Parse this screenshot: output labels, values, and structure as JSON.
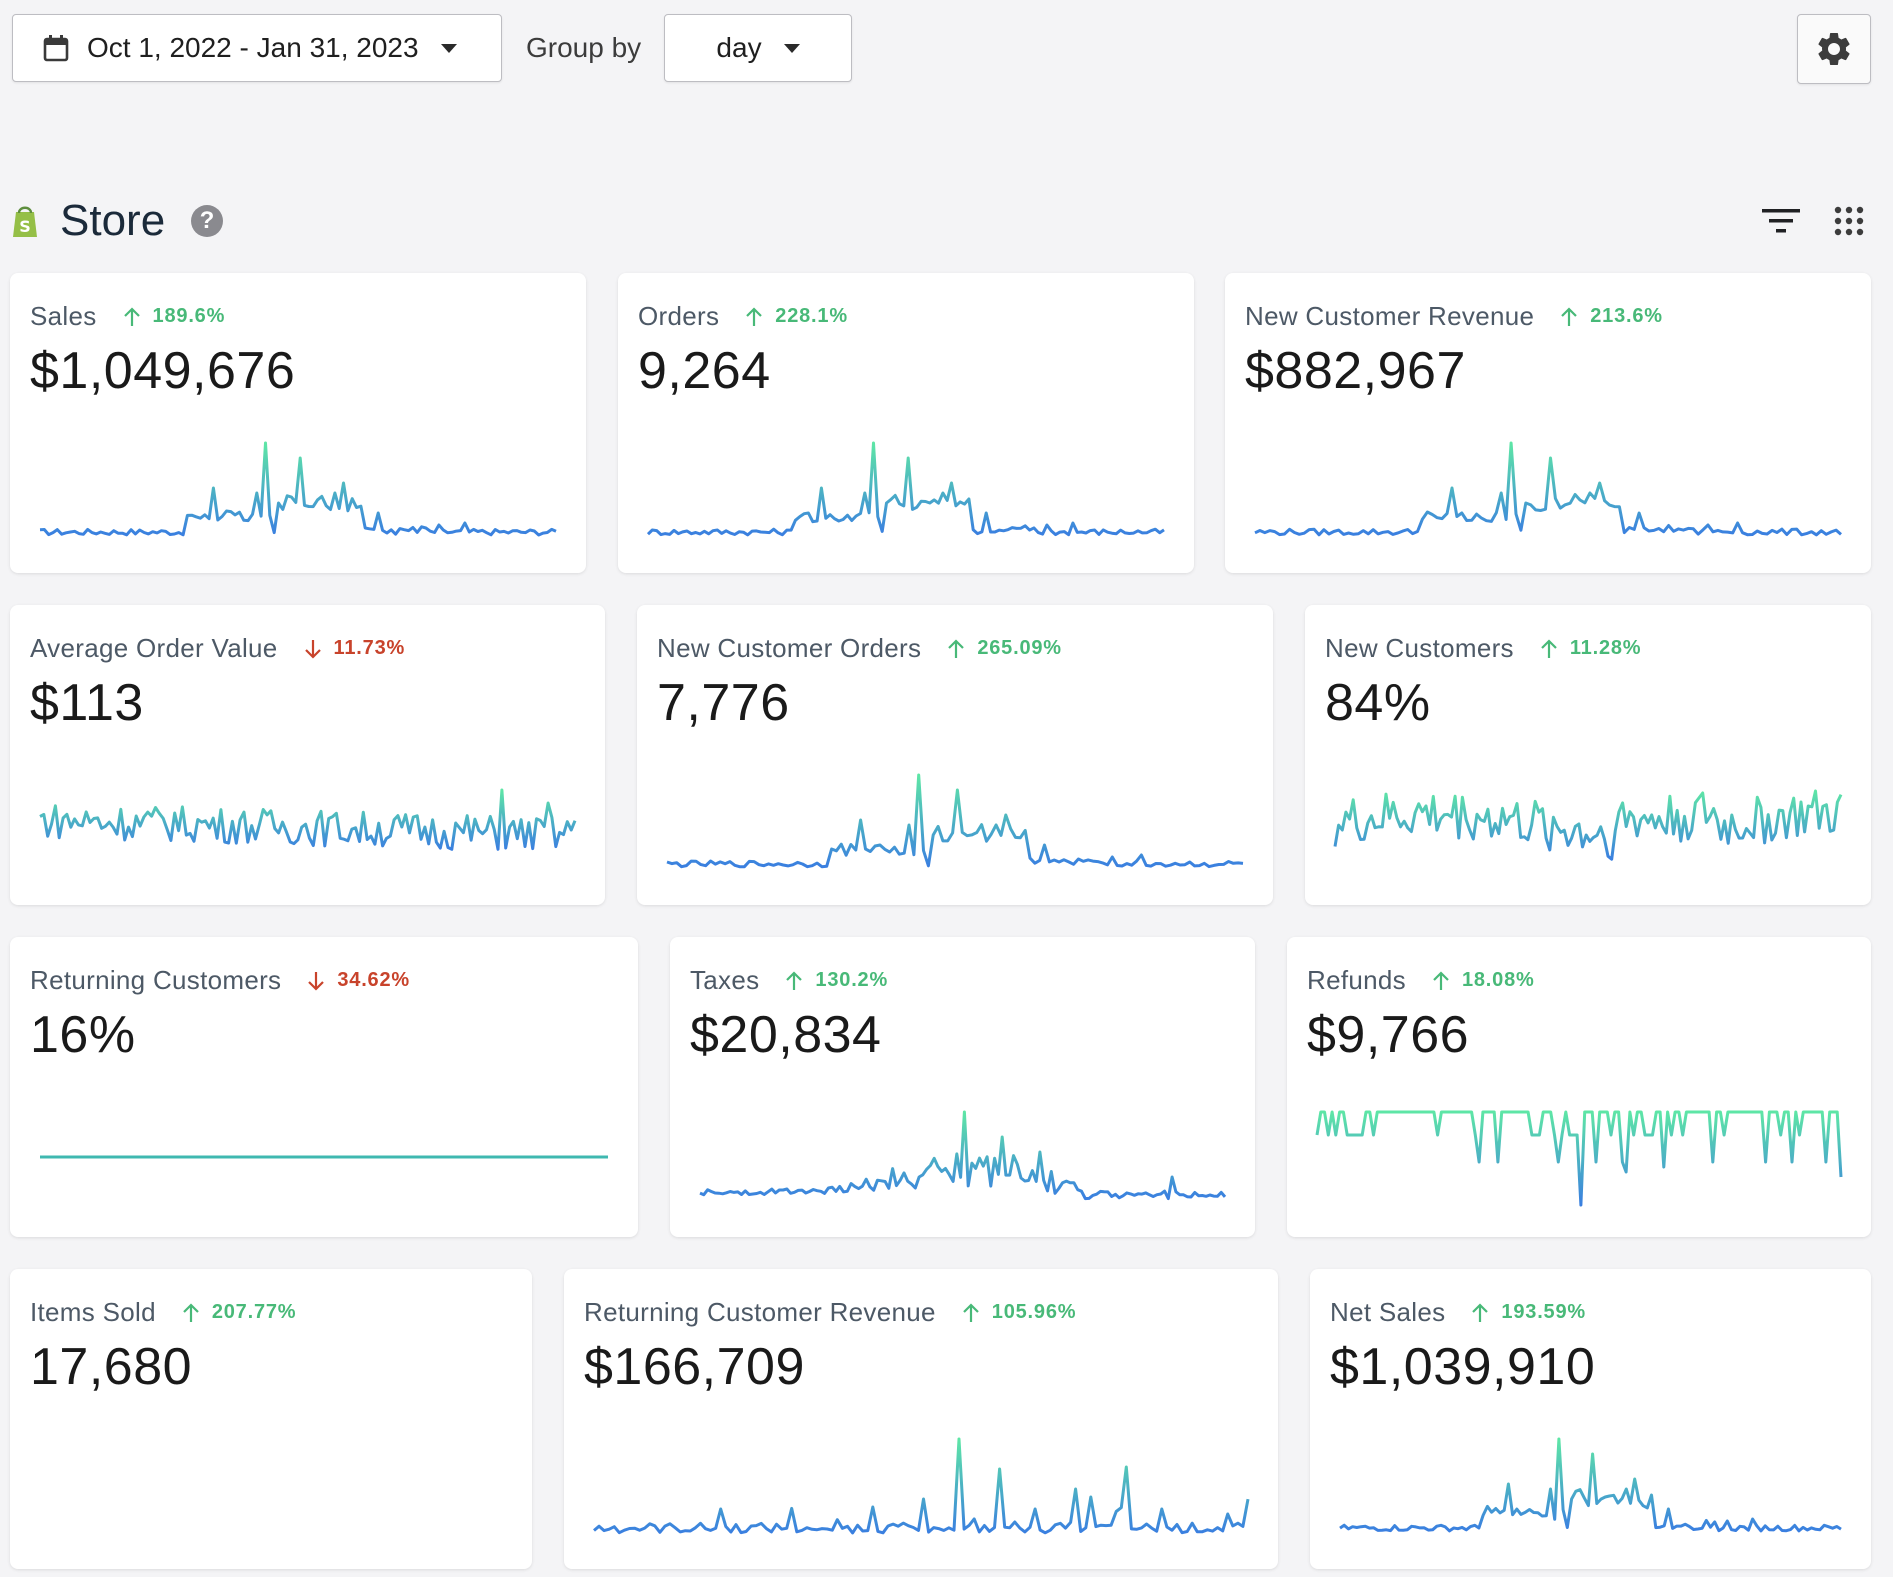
{
  "toolbar": {
    "date_range": "Oct 1, 2022 - Jan 31, 2023",
    "group_by_label": "Group by",
    "group_by_value": "day",
    "settings_icon": "gear-icon"
  },
  "section": {
    "title": "Store",
    "help_glyph": "?",
    "icons": [
      "shopify-bag-icon",
      "help-icon",
      "filter-icon",
      "grid-icon"
    ]
  },
  "colors": {
    "up": "#48b978",
    "down": "#c8432b",
    "spark_low": "#3a7fe0",
    "spark_high": "#5ee6a6"
  },
  "cards": [
    {
      "title": "Sales",
      "change": "189.6%",
      "dir": "up",
      "value": "$1,049,676",
      "spark": "A"
    },
    {
      "title": "Orders",
      "change": "228.1%",
      "dir": "up",
      "value": "9,264",
      "spark": "A"
    },
    {
      "title": "New Customer Revenue",
      "change": "213.6%",
      "dir": "up",
      "value": "$882,967",
      "spark": "A"
    },
    {
      "title": "Average Order Value",
      "change": "11.73%",
      "dir": "down",
      "value": "$113",
      "spark": "B"
    },
    {
      "title": "New Customer Orders",
      "change": "265.09%",
      "dir": "up",
      "value": "7,776",
      "spark": "A"
    },
    {
      "title": "New Customers",
      "change": "11.28%",
      "dir": "up",
      "value": "84%",
      "spark": "C"
    },
    {
      "title": "Returning Customers",
      "change": "34.62%",
      "dir": "down",
      "value": "16%",
      "spark": "D"
    },
    {
      "title": "Taxes",
      "change": "130.2%",
      "dir": "up",
      "value": "$20,834",
      "spark": "E"
    },
    {
      "title": "Refunds",
      "change": "18.08%",
      "dir": "up",
      "value": "$9,766",
      "spark": "F"
    },
    {
      "title": "Items Sold",
      "change": "207.77%",
      "dir": "up",
      "value": "17,680",
      "spark": "none"
    },
    {
      "title": "Returning Customer Revenue",
      "change": "105.96%",
      "dir": "up",
      "value": "$166,709",
      "spark": "G"
    },
    {
      "title": "Net Sales",
      "change": "193.59%",
      "dir": "up",
      "value": "$1,039,910",
      "spark": "A"
    }
  ]
}
